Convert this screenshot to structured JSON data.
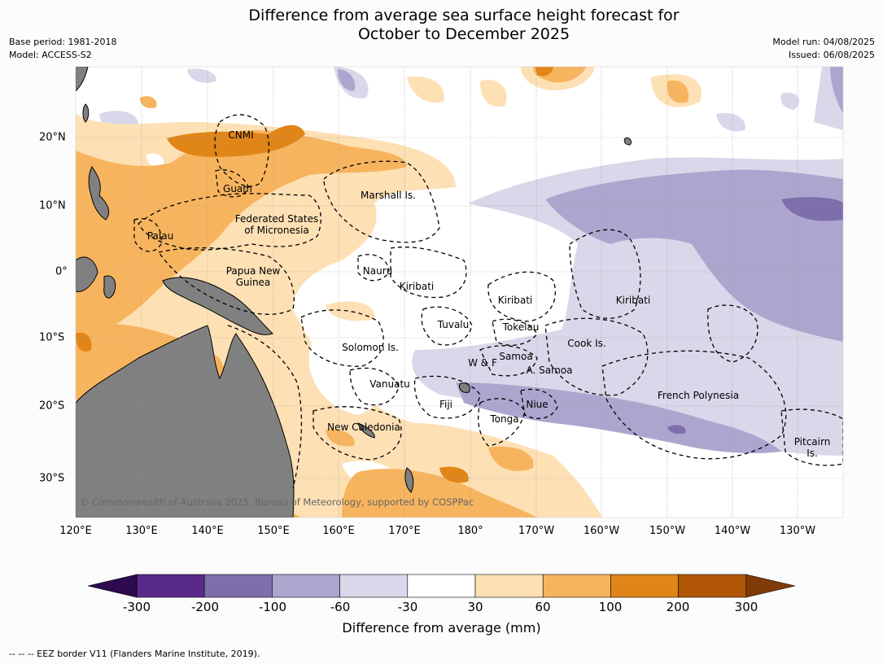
{
  "title_line1": "Difference from average sea surface height forecast for",
  "title_line2": "October to December 2025",
  "meta_left": {
    "base_period": "Base period: 1981-2018",
    "model": "Model: ACCESS-S2"
  },
  "meta_right": {
    "model_run": "Model run: 04/08/2025",
    "issued": "Issued: 06/08/2025"
  },
  "longitude_labels": [
    "120°E",
    "130°E",
    "140°E",
    "150°E",
    "160°E",
    "170°E",
    "180°",
    "170°W",
    "160°W",
    "150°W",
    "140°W",
    "130°W"
  ],
  "latitude_labels": [
    "20°N",
    "10°N",
    "0°",
    "10°S",
    "20°S",
    "30°S"
  ],
  "regions": {
    "cnmi": "CNMI",
    "guam": "Guam",
    "marshall": "Marshall Is.",
    "fsm_1": "Federated States",
    "fsm_2": "of Micronesia",
    "palau": "Palau",
    "png_1": "Papua New",
    "png_2": "Guinea",
    "nauru": "Nauru",
    "kiribati_w": "Kiribati",
    "kiribati_c": "Kiribati",
    "kiribati_e": "Kiribati",
    "tuvalu": "Tuvalu",
    "tokelau": "Tokelau",
    "cook": "Cook Is.",
    "solomon": "Solomon Is.",
    "wf": "W & F",
    "samoa": "Samoa",
    "asamoa": "A. Samoa",
    "vanuatu": "Vanuatu",
    "fiji": "Fiji",
    "niue": "Niue",
    "tonga": "Tonga",
    "newcal": "New Caledonia",
    "frpoly": "French Polynesia",
    "pitcairn_1": "Pitcairn",
    "pitcairn_2": "Is."
  },
  "copyright": "© Commonwealth of Australia 2025, Bureau of Meteorology, supported by COSPPac",
  "colorbar": {
    "ticks": [
      "-300",
      "-200",
      "-100",
      "-60",
      "-30",
      "30",
      "60",
      "100",
      "200",
      "300"
    ],
    "colors": [
      "#5a2a8a",
      "#7e6fac",
      "#aca6cf",
      "#d8d8ea",
      "#ffffff",
      "#fde0b4",
      "#f7b45e",
      "#e08518",
      "#b15707"
    ],
    "under_color": "#2e0a4e",
    "over_color": "#7f3b08",
    "label": "Difference from average (mm)"
  },
  "footnote": "--  --  -- EEZ border V11 (Flanders Marine Institute, 2019)."
}
